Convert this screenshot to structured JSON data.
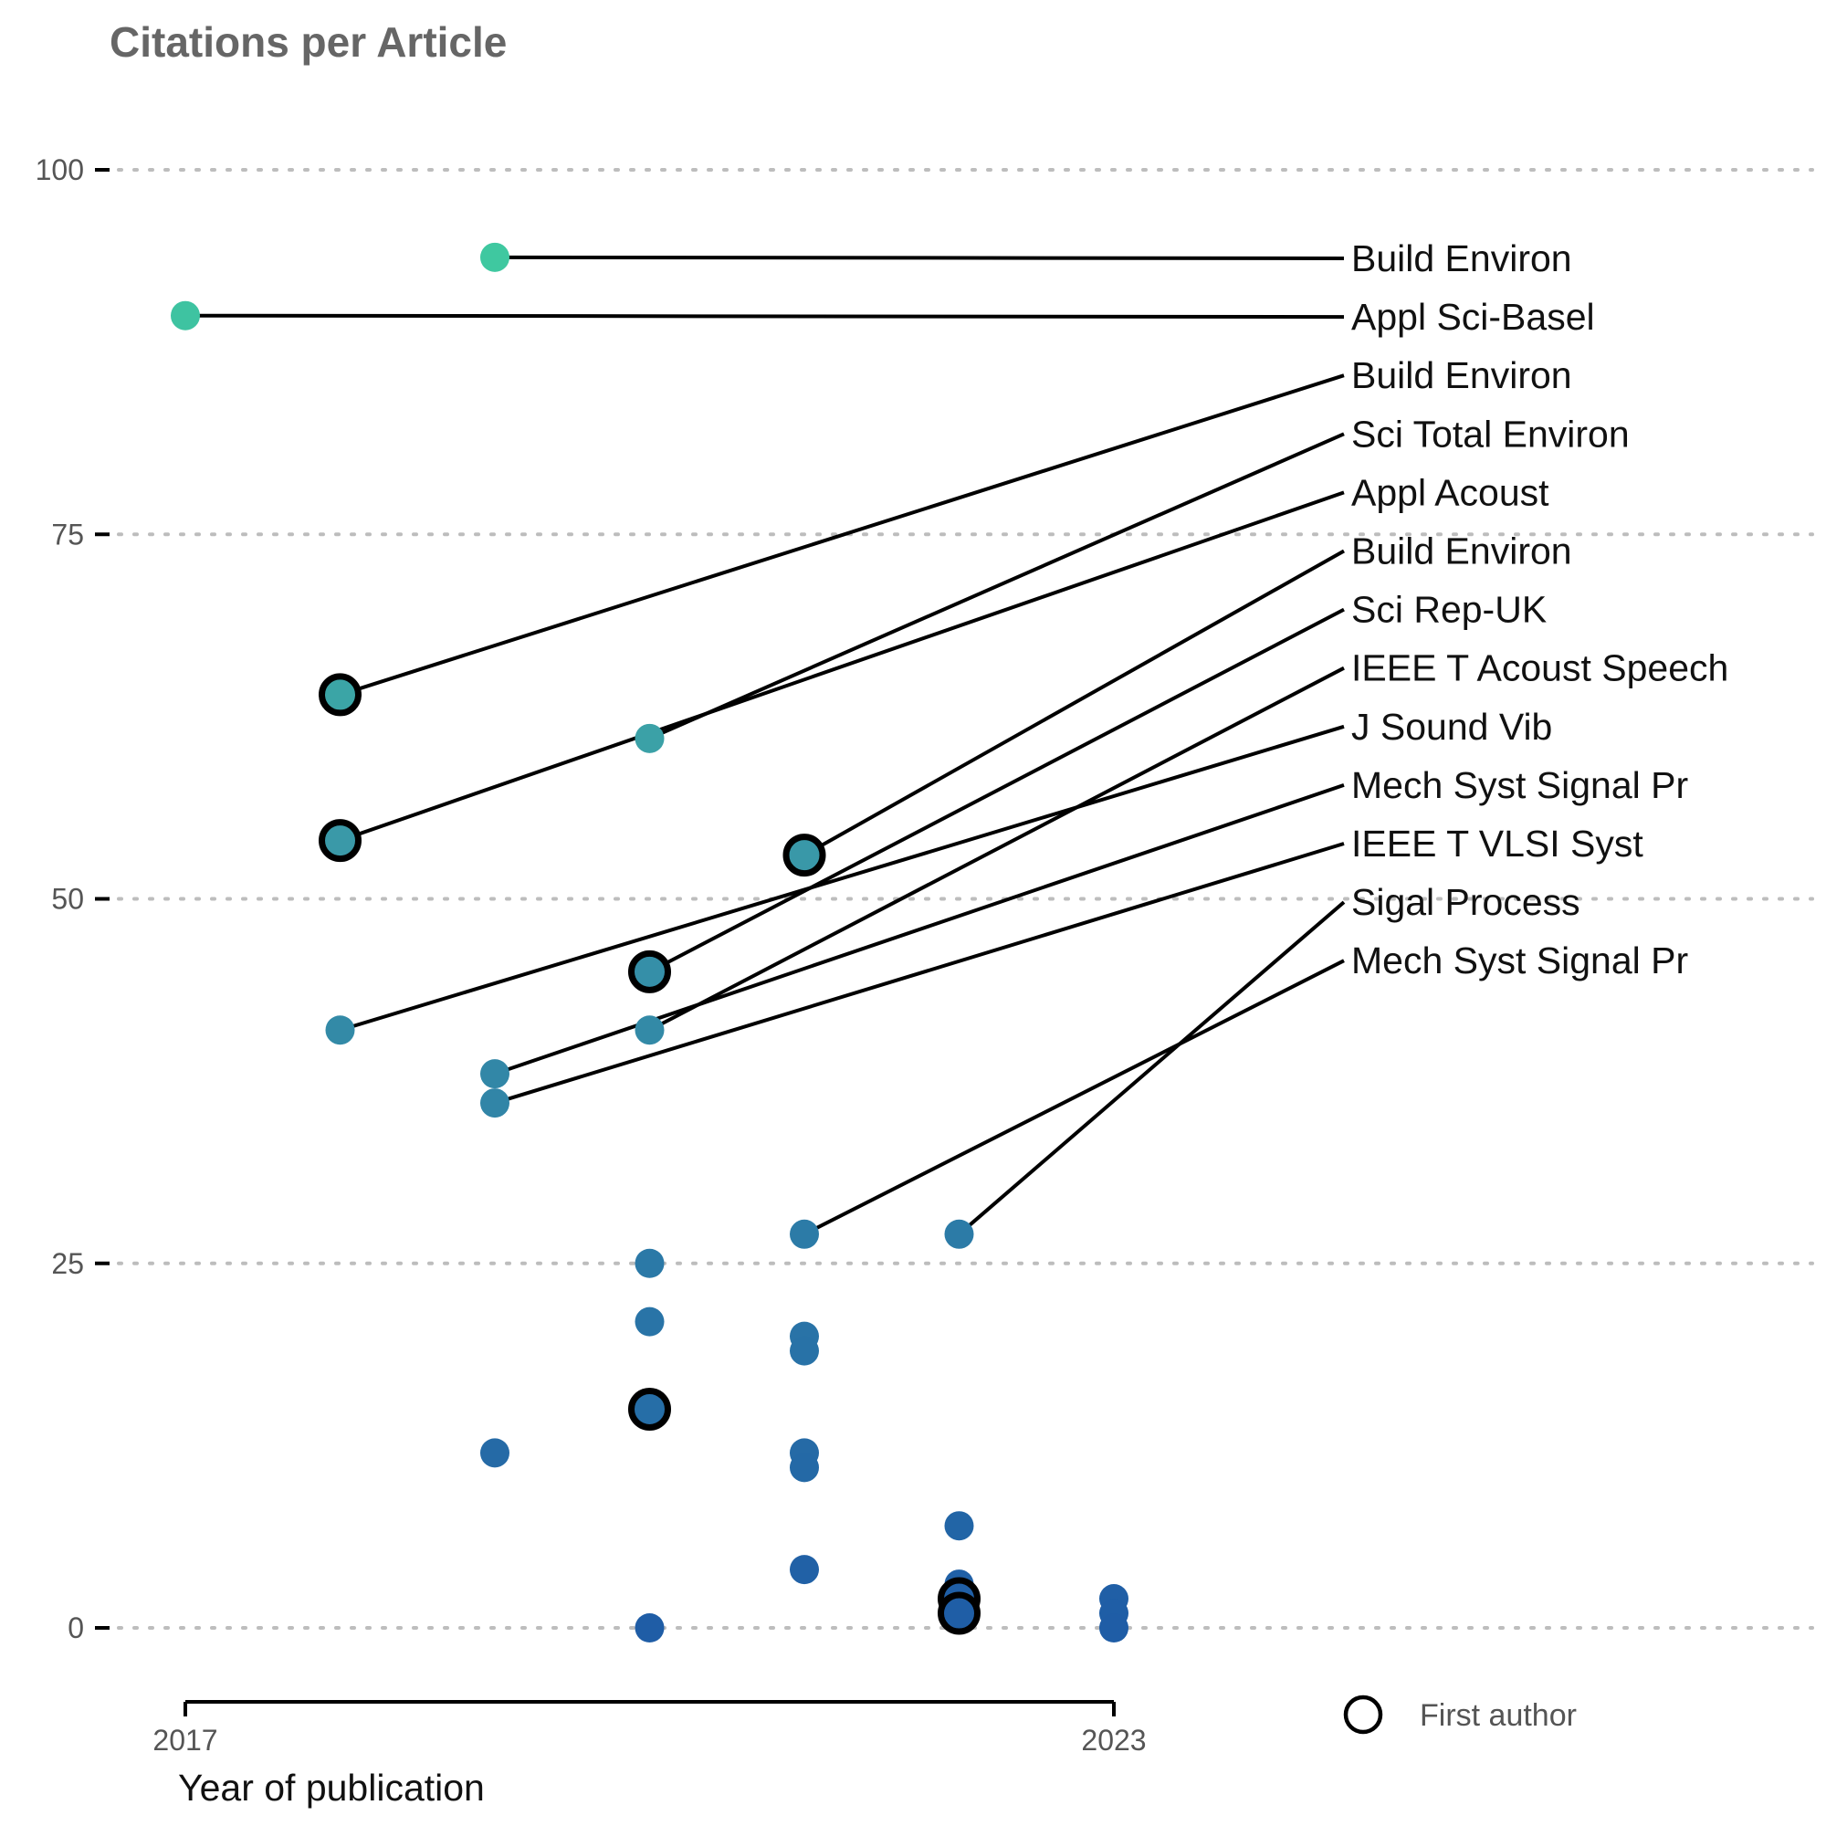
{
  "chart_data": {
    "type": "scatter",
    "title": "Citations per Article",
    "xlabel": "Year of publication",
    "ylabel": "",
    "xlim": [
      2017,
      2023
    ],
    "ylim": [
      0,
      100
    ],
    "x_ticks": [
      "2017",
      "2023"
    ],
    "y_ticks": [
      "0",
      "25",
      "50",
      "75",
      "100"
    ],
    "grid": "horizontal-dotted",
    "legend": {
      "position": "bottom-right",
      "entries": [
        {
          "label": "First author",
          "marker": "open-circle"
        }
      ]
    },
    "colors": {
      "high": "#3fc9a0",
      "mid": "#3a9aa8",
      "low": "#1f5da6",
      "ring": "#000000",
      "line": "#000000"
    },
    "points": [
      {
        "x": 2017,
        "y": 90,
        "first_author": false,
        "journal": "Appl Sci-Basel"
      },
      {
        "x": 2019,
        "y": 94,
        "first_author": false,
        "journal": "Build Environ"
      },
      {
        "x": 2018,
        "y": 64,
        "first_author": true,
        "journal": "Build Environ"
      },
      {
        "x": 2020,
        "y": 61,
        "first_author": false,
        "journal": "Sci Total Environ"
      },
      {
        "x": 2018,
        "y": 54,
        "first_author": true,
        "journal": "Appl Acoust"
      },
      {
        "x": 2021,
        "y": 53,
        "first_author": true,
        "journal": "Build Environ"
      },
      {
        "x": 2020,
        "y": 45,
        "first_author": true,
        "journal": "Sci Rep-UK"
      },
      {
        "x": 2020,
        "y": 41,
        "first_author": false,
        "journal": "IEEE T Acoust Speech"
      },
      {
        "x": 2018,
        "y": 41,
        "first_author": false,
        "journal": "J Sound Vib"
      },
      {
        "x": 2019,
        "y": 38,
        "first_author": false,
        "journal": "Mech Syst Signal Pr"
      },
      {
        "x": 2019,
        "y": 36,
        "first_author": false,
        "journal": "IEEE T VLSI Syst"
      },
      {
        "x": 2022,
        "y": 27,
        "first_author": false,
        "journal": "Sigal Process"
      },
      {
        "x": 2021,
        "y": 27,
        "first_author": false,
        "journal": "Mech Syst Signal Pr"
      },
      {
        "x": 2020,
        "y": 25,
        "first_author": false
      },
      {
        "x": 2020,
        "y": 21,
        "first_author": false
      },
      {
        "x": 2021,
        "y": 20,
        "first_author": false
      },
      {
        "x": 2021,
        "y": 19,
        "first_author": false
      },
      {
        "x": 2020,
        "y": 15,
        "first_author": true
      },
      {
        "x": 2019,
        "y": 12,
        "first_author": false
      },
      {
        "x": 2021,
        "y": 12,
        "first_author": false
      },
      {
        "x": 2021,
        "y": 11,
        "first_author": false
      },
      {
        "x": 2022,
        "y": 7,
        "first_author": false
      },
      {
        "x": 2021,
        "y": 4,
        "first_author": false
      },
      {
        "x": 2022,
        "y": 3,
        "first_author": false
      },
      {
        "x": 2022,
        "y": 2,
        "first_author": true
      },
      {
        "x": 2022,
        "y": 1,
        "first_author": true
      },
      {
        "x": 2023,
        "y": 2,
        "first_author": false
      },
      {
        "x": 2023,
        "y": 1,
        "first_author": false
      },
      {
        "x": 2023,
        "y": 0,
        "first_author": false
      },
      {
        "x": 2020,
        "y": 0,
        "first_author": false
      }
    ],
    "annotations": [
      {
        "text": "Build Environ",
        "point": 1
      },
      {
        "text": "Appl Sci-Basel",
        "point": 0
      },
      {
        "text": "Build Environ",
        "point": 2
      },
      {
        "text": "Sci Total Environ",
        "point": 3
      },
      {
        "text": "Appl Acoust",
        "point": 4
      },
      {
        "text": "Build Environ",
        "point": 5
      },
      {
        "text": "Sci Rep-UK",
        "point": 6
      },
      {
        "text": "IEEE T Acoust Speech",
        "point": 7
      },
      {
        "text": "J Sound Vib",
        "point": 8
      },
      {
        "text": "Mech Syst Signal Pr",
        "point": 9
      },
      {
        "text": "IEEE T VLSI Syst",
        "point": 10
      },
      {
        "text": "Sigal Process",
        "point": 11
      },
      {
        "text": "Mech Syst Signal Pr",
        "point": 12
      }
    ]
  }
}
